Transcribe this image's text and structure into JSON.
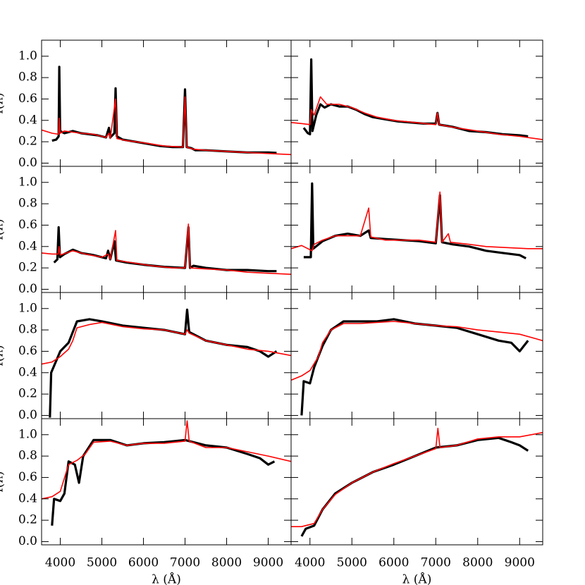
{
  "chart_data": [
    {
      "type": "line",
      "ylabel": "f(λ)",
      "xlim": [
        3550,
        9550
      ],
      "ylim": [
        -0.03,
        1.15
      ],
      "xticks": [
        4000,
        5000,
        6000,
        7000,
        8000,
        9000
      ],
      "yticks": [
        {
          "value": 0,
          "label": "0.0"
        },
        0.2,
        0.4,
        0.6,
        0.8,
        {
          "value": 1,
          "label": "1.0"
        }
      ],
      "series": [
        {
          "color": "#000000",
          "x": [
            3800,
            3900,
            3960,
            3975,
            3995,
            4100,
            4300,
            4500,
            4700,
            4900,
            5100,
            5170,
            5200,
            5300,
            5330,
            5360,
            5500,
            5800,
            6100,
            6400,
            6700,
            6950,
            7000,
            7040,
            7150,
            7200,
            7250,
            7500,
            8000,
            8500,
            9000,
            9200
          ],
          "values": [
            0.21,
            0.22,
            0.25,
            0.9,
            0.3,
            0.28,
            0.3,
            0.28,
            0.27,
            0.26,
            0.24,
            0.33,
            0.24,
            0.28,
            0.7,
            0.25,
            0.22,
            0.2,
            0.18,
            0.16,
            0.15,
            0.15,
            0.69,
            0.15,
            0.14,
            0.13,
            0.12,
            0.12,
            0.11,
            0.1,
            0.1,
            0.095
          ]
        },
        {
          "color": "#ff0000",
          "x": [
            3550,
            3800,
            3960,
            3975,
            3995,
            4100,
            4300,
            4500,
            4800,
            5100,
            5170,
            5200,
            5330,
            5360,
            5600,
            6000,
            6500,
            6950,
            7000,
            7040,
            7200,
            7500,
            8000,
            8500,
            9000,
            9550
          ],
          "values": [
            0.31,
            0.28,
            0.27,
            0.42,
            0.28,
            0.3,
            0.29,
            0.28,
            0.27,
            0.24,
            0.28,
            0.23,
            0.6,
            0.23,
            0.21,
            0.19,
            0.16,
            0.15,
            0.62,
            0.15,
            0.13,
            0.12,
            0.11,
            0.1,
            0.09,
            0.08
          ]
        }
      ]
    },
    {
      "type": "line",
      "xlim": [
        3550,
        9550
      ],
      "ylim": [
        -0.03,
        1.15
      ],
      "xticks": [
        4000,
        5000,
        6000,
        7000,
        8000,
        9000
      ],
      "yticks": [
        {
          "value": 0,
          "label": "0.0"
        },
        0.2,
        0.4,
        0.6,
        0.8,
        {
          "value": 1,
          "label": "1.0"
        }
      ],
      "series": [
        {
          "color": "#000000",
          "x": [
            3850,
            3950,
            4000,
            4030,
            4060,
            4150,
            4250,
            4350,
            4500,
            4700,
            4900,
            5100,
            5300,
            5500,
            5800,
            6100,
            6400,
            6700,
            7000,
            7040,
            7080,
            7400,
            7800,
            8200,
            8600,
            9000,
            9200
          ],
          "values": [
            0.33,
            0.28,
            0.27,
            0.97,
            0.3,
            0.45,
            0.55,
            0.52,
            0.55,
            0.53,
            0.53,
            0.5,
            0.46,
            0.43,
            0.41,
            0.39,
            0.38,
            0.37,
            0.37,
            0.47,
            0.36,
            0.34,
            0.3,
            0.29,
            0.27,
            0.26,
            0.25
          ]
        },
        {
          "color": "#ff0000",
          "x": [
            3550,
            3800,
            4000,
            4030,
            4100,
            4250,
            4400,
            4700,
            5000,
            5300,
            5600,
            6000,
            6500,
            7000,
            7040,
            7080,
            7500,
            8000,
            8500,
            9000,
            9550
          ],
          "values": [
            0.38,
            0.37,
            0.36,
            0.5,
            0.45,
            0.62,
            0.55,
            0.55,
            0.52,
            0.47,
            0.43,
            0.4,
            0.38,
            0.36,
            0.47,
            0.36,
            0.33,
            0.3,
            0.27,
            0.25,
            0.22
          ]
        }
      ]
    },
    {
      "type": "line",
      "ylabel": "f(λ)",
      "xlim": [
        3550,
        9550
      ],
      "ylim": [
        -0.03,
        1.15
      ],
      "xticks": [
        4000,
        5000,
        6000,
        7000,
        8000,
        9000
      ],
      "yticks": [
        {
          "value": 0,
          "label": "0.0"
        },
        0.2,
        0.4,
        0.6,
        0.8,
        {
          "value": 1,
          "label": "1.0"
        }
      ],
      "series": [
        {
          "color": "#000000",
          "x": [
            3850,
            3930,
            3960,
            3990,
            4100,
            4300,
            4500,
            4800,
            5100,
            5150,
            5200,
            5300,
            5340,
            5600,
            6000,
            6500,
            7000,
            7080,
            7120,
            7200,
            7500,
            8000,
            8500,
            9000,
            9200
          ],
          "values": [
            0.25,
            0.28,
            0.58,
            0.3,
            0.33,
            0.37,
            0.34,
            0.32,
            0.29,
            0.36,
            0.28,
            0.45,
            0.27,
            0.25,
            0.23,
            0.21,
            0.2,
            0.58,
            0.2,
            0.22,
            0.2,
            0.18,
            0.18,
            0.17,
            0.17
          ]
        },
        {
          "color": "#ff0000",
          "x": [
            3550,
            3800,
            3950,
            3970,
            4000,
            4300,
            4600,
            5000,
            5150,
            5200,
            5330,
            5360,
            5700,
            6200,
            6700,
            7000,
            7080,
            7120,
            7500,
            8000,
            8500,
            9000,
            9550
          ],
          "values": [
            0.34,
            0.33,
            0.33,
            0.4,
            0.32,
            0.36,
            0.33,
            0.3,
            0.33,
            0.28,
            0.55,
            0.27,
            0.25,
            0.22,
            0.2,
            0.2,
            0.61,
            0.2,
            0.19,
            0.18,
            0.16,
            0.15,
            0.14
          ]
        }
      ]
    },
    {
      "type": "line",
      "xlim": [
        3550,
        9550
      ],
      "ylim": [
        -0.03,
        1.15
      ],
      "xticks": [
        4000,
        5000,
        6000,
        7000,
        8000,
        9000
      ],
      "yticks": [
        {
          "value": 0,
          "label": "0.0"
        },
        0.2,
        0.4,
        0.6,
        0.8,
        {
          "value": 1,
          "label": "1.0"
        }
      ],
      "series": [
        {
          "color": "#000000",
          "x": [
            3850,
            3950,
            4020,
            4050,
            4080,
            4300,
            4600,
            4900,
            5200,
            5400,
            5450,
            5800,
            6200,
            6600,
            7000,
            7100,
            7150,
            7400,
            7800,
            8200,
            8600,
            9000,
            9150
          ],
          "values": [
            0.3,
            0.3,
            0.3,
            0.99,
            0.38,
            0.45,
            0.5,
            0.52,
            0.5,
            0.55,
            0.48,
            0.47,
            0.46,
            0.45,
            0.43,
            0.88,
            0.44,
            0.42,
            0.4,
            0.36,
            0.34,
            0.32,
            0.29
          ]
        },
        {
          "color": "#ff0000",
          "x": [
            3550,
            3800,
            4050,
            4100,
            4300,
            4600,
            5000,
            5200,
            5400,
            5450,
            5800,
            6200,
            6600,
            7000,
            7100,
            7150,
            7300,
            7350,
            7800,
            8200,
            8700,
            9200,
            9550
          ],
          "values": [
            0.38,
            0.41,
            0.36,
            0.42,
            0.46,
            0.5,
            0.5,
            0.5,
            0.76,
            0.49,
            0.46,
            0.46,
            0.46,
            0.44,
            0.91,
            0.44,
            0.52,
            0.44,
            0.42,
            0.4,
            0.39,
            0.38,
            0.38
          ]
        }
      ]
    },
    {
      "type": "line",
      "ylabel": "f(λ)",
      "xlim": [
        3550,
        9550
      ],
      "ylim": [
        -0.03,
        1.15
      ],
      "xticks": [
        4000,
        5000,
        6000,
        7000,
        8000,
        9000
      ],
      "yticks": [
        {
          "value": 0,
          "label": "0.0"
        },
        0.2,
        0.4,
        0.6,
        0.8,
        {
          "value": 1,
          "label": "1.0"
        }
      ],
      "series": [
        {
          "color": "#000000",
          "x": [
            3750,
            3780,
            4000,
            4200,
            4400,
            4700,
            5000,
            5500,
            6000,
            6500,
            7000,
            7050,
            7100,
            7500,
            8000,
            8500,
            8800,
            9000,
            9200
          ],
          "values": [
            -0.02,
            0.4,
            0.6,
            0.68,
            0.88,
            0.9,
            0.88,
            0.84,
            0.82,
            0.8,
            0.76,
            0.99,
            0.78,
            0.7,
            0.66,
            0.64,
            0.6,
            0.55,
            0.6
          ]
        },
        {
          "color": "#ff0000",
          "x": [
            3550,
            3800,
            4000,
            4200,
            4300,
            4400,
            4700,
            5000,
            5500,
            6000,
            6500,
            7000,
            7050,
            7100,
            7500,
            8000,
            8500,
            9000,
            9550
          ],
          "values": [
            0.48,
            0.5,
            0.55,
            0.62,
            0.7,
            0.82,
            0.85,
            0.87,
            0.83,
            0.81,
            0.8,
            0.76,
            0.8,
            0.77,
            0.7,
            0.66,
            0.62,
            0.6,
            0.56
          ]
        }
      ]
    },
    {
      "type": "line",
      "xlim": [
        3550,
        9550
      ],
      "ylim": [
        -0.03,
        1.15
      ],
      "xticks": [
        4000,
        5000,
        6000,
        7000,
        8000,
        9000
      ],
      "yticks": [
        {
          "value": 0,
          "label": "0.0"
        },
        0.2,
        0.4,
        0.6,
        0.8,
        {
          "value": 1,
          "label": "1.0"
        }
      ],
      "series": [
        {
          "color": "#000000",
          "x": [
            3800,
            3850,
            4000,
            4100,
            4300,
            4500,
            4800,
            5200,
            5600,
            6000,
            6500,
            7000,
            7500,
            8000,
            8500,
            8800,
            9000,
            9200
          ],
          "values": [
            0.0,
            0.32,
            0.3,
            0.45,
            0.65,
            0.8,
            0.88,
            0.88,
            0.88,
            0.9,
            0.86,
            0.84,
            0.82,
            0.76,
            0.7,
            0.68,
            0.6,
            0.7
          ]
        },
        {
          "color": "#ff0000",
          "x": [
            3550,
            3800,
            4000,
            4200,
            4300,
            4500,
            4800,
            5200,
            5600,
            6000,
            6500,
            7000,
            7500,
            8000,
            8500,
            9000,
            9550
          ],
          "values": [
            0.33,
            0.37,
            0.42,
            0.55,
            0.68,
            0.8,
            0.86,
            0.86,
            0.87,
            0.88,
            0.86,
            0.84,
            0.83,
            0.8,
            0.78,
            0.76,
            0.7
          ]
        }
      ]
    },
    {
      "type": "line",
      "ylabel": "f(λ)",
      "xlabel": "λ (Å)",
      "xlim": [
        3550,
        9550
      ],
      "ylim": [
        -0.03,
        1.15
      ],
      "xticks": [
        4000,
        5000,
        6000,
        7000,
        8000,
        9000
      ],
      "yticks": [
        {
          "value": 0,
          "label": "0.0"
        },
        0.2,
        0.4,
        0.6,
        0.8,
        {
          "value": 1,
          "label": "1.0"
        }
      ],
      "series": [
        {
          "color": "#000000",
          "x": [
            3800,
            3850,
            4000,
            4100,
            4200,
            4350,
            4450,
            4550,
            4800,
            5200,
            5600,
            6000,
            6500,
            7000,
            7500,
            8000,
            8500,
            8800,
            9000,
            9150
          ],
          "values": [
            0.15,
            0.4,
            0.38,
            0.45,
            0.75,
            0.72,
            0.55,
            0.8,
            0.95,
            0.95,
            0.9,
            0.92,
            0.93,
            0.95,
            0.9,
            0.88,
            0.82,
            0.78,
            0.72,
            0.75
          ]
        },
        {
          "color": "#ff0000",
          "x": [
            3550,
            3800,
            4000,
            4200,
            4400,
            4600,
            4800,
            5200,
            5600,
            6000,
            6500,
            7000,
            7050,
            7100,
            7500,
            8000,
            8500,
            9000,
            9550
          ],
          "values": [
            0.4,
            0.42,
            0.47,
            0.72,
            0.76,
            0.82,
            0.93,
            0.94,
            0.9,
            0.92,
            0.92,
            0.94,
            1.13,
            0.94,
            0.88,
            0.88,
            0.84,
            0.8,
            0.75
          ]
        }
      ]
    },
    {
      "type": "line",
      "xlabel": "λ (Å)",
      "xlim": [
        3550,
        9550
      ],
      "ylim": [
        -0.03,
        1.15
      ],
      "xticks": [
        4000,
        5000,
        6000,
        7000,
        8000,
        9000
      ],
      "yticks": [
        {
          "value": 0,
          "label": "0.0"
        },
        0.2,
        0.4,
        0.6,
        0.8,
        {
          "value": 1,
          "label": "1.0"
        }
      ],
      "series": [
        {
          "color": "#000000",
          "x": [
            3800,
            3900,
            4100,
            4300,
            4600,
            5000,
            5500,
            6000,
            6500,
            7000,
            7500,
            8000,
            8500,
            8800,
            9000,
            9200
          ],
          "values": [
            0.05,
            0.12,
            0.15,
            0.3,
            0.45,
            0.55,
            0.65,
            0.72,
            0.8,
            0.88,
            0.9,
            0.95,
            0.97,
            0.93,
            0.9,
            0.85
          ]
        },
        {
          "color": "#ff0000",
          "x": [
            3550,
            3800,
            4100,
            4300,
            4600,
            5000,
            5500,
            6000,
            6500,
            7000,
            7050,
            7100,
            7500,
            8000,
            8500,
            9000,
            9550
          ],
          "values": [
            0.14,
            0.14,
            0.17,
            0.3,
            0.44,
            0.55,
            0.65,
            0.73,
            0.8,
            0.87,
            1.06,
            0.88,
            0.9,
            0.96,
            0.98,
            0.98,
            1.02
          ]
        }
      ]
    }
  ]
}
